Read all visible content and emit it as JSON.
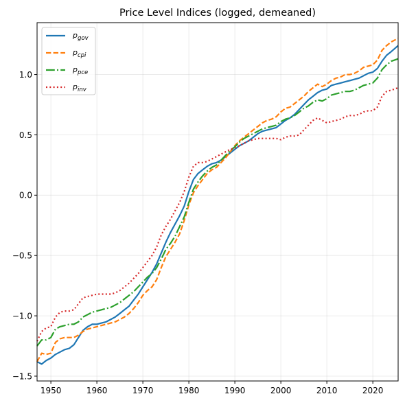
{
  "chart_data": {
    "type": "line",
    "title": "Price Level Indices (logged, demeaned)",
    "xlabel": "",
    "ylabel": "",
    "xlim": [
      1947,
      2025.5
    ],
    "ylim": [
      -1.54,
      1.43
    ],
    "xticks": [
      1950,
      1960,
      1970,
      1980,
      1990,
      2000,
      2010,
      2020
    ],
    "xtick_labels": [
      "1950",
      "1960",
      "1970",
      "1980",
      "1990",
      "2000",
      "2010",
      "2020"
    ],
    "yticks": [
      -1.5,
      -1.0,
      -0.5,
      0.0,
      0.5,
      1.0
    ],
    "ytick_labels": [
      "−1.5",
      "−1.0",
      "−0.5",
      "0.0",
      "0.5",
      "1.0"
    ],
    "grid": true,
    "legend_position": "top-left",
    "series": [
      {
        "key": "gov",
        "name": "p",
        "subscript": "gov",
        "color": "#1f77b4",
        "dash": "solid",
        "x": [
          1947,
          1948,
          1949,
          1950,
          1951,
          1952,
          1953,
          1954,
          1955,
          1956,
          1957,
          1958,
          1959,
          1960,
          1961,
          1962,
          1963,
          1964,
          1965,
          1966,
          1967,
          1968,
          1969,
          1970,
          1971,
          1972,
          1973,
          1974,
          1975,
          1976,
          1977,
          1978,
          1979,
          1980,
          1981,
          1982,
          1983,
          1984,
          1985,
          1986,
          1987,
          1988,
          1989,
          1990,
          1991,
          1992,
          1993,
          1994,
          1995,
          1996,
          1997,
          1998,
          1999,
          2000,
          2001,
          2002,
          2003,
          2004,
          2005,
          2006,
          2007,
          2008,
          2009,
          2010,
          2011,
          2012,
          2013,
          2014,
          2015,
          2016,
          2017,
          2018,
          2019,
          2020,
          2021,
          2022,
          2023,
          2024,
          2025.5
        ],
        "y": [
          -1.38,
          -1.4,
          -1.37,
          -1.35,
          -1.32,
          -1.3,
          -1.28,
          -1.27,
          -1.24,
          -1.18,
          -1.12,
          -1.09,
          -1.07,
          -1.07,
          -1.06,
          -1.05,
          -1.03,
          -1.01,
          -0.98,
          -0.95,
          -0.92,
          -0.87,
          -0.82,
          -0.76,
          -0.7,
          -0.64,
          -0.57,
          -0.48,
          -0.39,
          -0.31,
          -0.24,
          -0.17,
          -0.09,
          0.03,
          0.13,
          0.18,
          0.21,
          0.24,
          0.26,
          0.27,
          0.29,
          0.32,
          0.35,
          0.38,
          0.41,
          0.43,
          0.45,
          0.48,
          0.51,
          0.53,
          0.54,
          0.55,
          0.56,
          0.59,
          0.62,
          0.64,
          0.67,
          0.71,
          0.75,
          0.79,
          0.82,
          0.85,
          0.87,
          0.88,
          0.91,
          0.92,
          0.93,
          0.94,
          0.95,
          0.96,
          0.97,
          0.99,
          1.01,
          1.02,
          1.05,
          1.11,
          1.16,
          1.19,
          1.24
        ]
      },
      {
        "key": "cpi",
        "name": "p",
        "subscript": "cpi",
        "color": "#ff7f0e",
        "dash": "dashed",
        "x": [
          1947,
          1948,
          1949,
          1950,
          1951,
          1952,
          1953,
          1954,
          1955,
          1956,
          1957,
          1958,
          1959,
          1960,
          1961,
          1962,
          1963,
          1964,
          1965,
          1966,
          1967,
          1968,
          1969,
          1970,
          1971,
          1972,
          1973,
          1974,
          1975,
          1976,
          1977,
          1978,
          1979,
          1980,
          1981,
          1982,
          1983,
          1984,
          1985,
          1986,
          1987,
          1988,
          1989,
          1990,
          1991,
          1992,
          1993,
          1994,
          1995,
          1996,
          1997,
          1998,
          1999,
          2000,
          2001,
          2002,
          2003,
          2004,
          2005,
          2006,
          2007,
          2008,
          2009,
          2010,
          2011,
          2012,
          2013,
          2014,
          2015,
          2016,
          2017,
          2018,
          2019,
          2020,
          2021,
          2022,
          2023,
          2024,
          2025.5
        ],
        "y": [
          -1.38,
          -1.31,
          -1.32,
          -1.31,
          -1.22,
          -1.19,
          -1.18,
          -1.18,
          -1.18,
          -1.16,
          -1.13,
          -1.11,
          -1.1,
          -1.09,
          -1.08,
          -1.07,
          -1.06,
          -1.05,
          -1.03,
          -1.01,
          -0.98,
          -0.94,
          -0.89,
          -0.83,
          -0.79,
          -0.76,
          -0.7,
          -0.6,
          -0.51,
          -0.45,
          -0.39,
          -0.32,
          -0.21,
          -0.08,
          0.02,
          0.08,
          0.13,
          0.18,
          0.21,
          0.23,
          0.27,
          0.31,
          0.36,
          0.41,
          0.45,
          0.48,
          0.51,
          0.54,
          0.57,
          0.6,
          0.62,
          0.63,
          0.65,
          0.69,
          0.72,
          0.73,
          0.76,
          0.79,
          0.82,
          0.86,
          0.89,
          0.92,
          0.9,
          0.92,
          0.95,
          0.97,
          0.98,
          1.0,
          1.0,
          1.01,
          1.03,
          1.06,
          1.07,
          1.08,
          1.12,
          1.2,
          1.24,
          1.27,
          1.3
        ]
      },
      {
        "key": "pce",
        "name": "p",
        "subscript": "pce",
        "color": "#2ca02c",
        "dash": "dashdot",
        "x": [
          1947,
          1948,
          1949,
          1950,
          1951,
          1952,
          1953,
          1954,
          1955,
          1956,
          1957,
          1958,
          1959,
          1960,
          1961,
          1962,
          1963,
          1964,
          1965,
          1966,
          1967,
          1968,
          1969,
          1970,
          1971,
          1972,
          1973,
          1974,
          1975,
          1976,
          1977,
          1978,
          1979,
          1980,
          1981,
          1982,
          1983,
          1984,
          1985,
          1986,
          1987,
          1988,
          1989,
          1990,
          1991,
          1992,
          1993,
          1994,
          1995,
          1996,
          1997,
          1998,
          1999,
          2000,
          2001,
          2002,
          2003,
          2004,
          2005,
          2006,
          2007,
          2008,
          2009,
          2010,
          2011,
          2012,
          2013,
          2014,
          2015,
          2016,
          2017,
          2018,
          2019,
          2020,
          2021,
          2022,
          2023,
          2024,
          2025.5
        ],
        "y": [
          -1.25,
          -1.2,
          -1.2,
          -1.18,
          -1.11,
          -1.09,
          -1.08,
          -1.07,
          -1.07,
          -1.05,
          -1.01,
          -0.99,
          -0.97,
          -0.96,
          -0.95,
          -0.94,
          -0.93,
          -0.91,
          -0.89,
          -0.86,
          -0.83,
          -0.8,
          -0.76,
          -0.72,
          -0.68,
          -0.65,
          -0.6,
          -0.53,
          -0.45,
          -0.4,
          -0.34,
          -0.26,
          -0.18,
          -0.06,
          0.05,
          0.11,
          0.16,
          0.2,
          0.23,
          0.25,
          0.29,
          0.33,
          0.37,
          0.4,
          0.44,
          0.47,
          0.49,
          0.51,
          0.53,
          0.55,
          0.56,
          0.57,
          0.58,
          0.61,
          0.63,
          0.64,
          0.66,
          0.69,
          0.72,
          0.74,
          0.77,
          0.79,
          0.78,
          0.8,
          0.83,
          0.84,
          0.85,
          0.86,
          0.86,
          0.87,
          0.89,
          0.91,
          0.92,
          0.93,
          0.97,
          1.04,
          1.08,
          1.11,
          1.13
        ]
      },
      {
        "key": "inv",
        "name": "p",
        "subscript": "inv",
        "color": "#d62728",
        "dash": "dotted",
        "x": [
          1947,
          1948,
          1949,
          1950,
          1951,
          1952,
          1953,
          1954,
          1955,
          1956,
          1957,
          1958,
          1959,
          1960,
          1961,
          1962,
          1963,
          1964,
          1965,
          1966,
          1967,
          1968,
          1969,
          1970,
          1971,
          1972,
          1973,
          1974,
          1975,
          1976,
          1977,
          1978,
          1979,
          1980,
          1981,
          1982,
          1983,
          1984,
          1985,
          1986,
          1987,
          1988,
          1989,
          1990,
          1991,
          1992,
          1993,
          1994,
          1995,
          1996,
          1997,
          1998,
          1999,
          2000,
          2001,
          2002,
          2003,
          2004,
          2005,
          2006,
          2007,
          2008,
          2009,
          2010,
          2011,
          2012,
          2013,
          2014,
          2015,
          2016,
          2017,
          2018,
          2019,
          2020,
          2021,
          2022,
          2023,
          2024,
          2025.5
        ],
        "y": [
          -1.21,
          -1.13,
          -1.1,
          -1.09,
          -1.01,
          -0.97,
          -0.96,
          -0.96,
          -0.95,
          -0.9,
          -0.85,
          -0.84,
          -0.83,
          -0.82,
          -0.82,
          -0.82,
          -0.82,
          -0.81,
          -0.79,
          -0.76,
          -0.73,
          -0.69,
          -0.65,
          -0.6,
          -0.55,
          -0.5,
          -0.43,
          -0.33,
          -0.26,
          -0.2,
          -0.13,
          -0.06,
          0.03,
          0.15,
          0.24,
          0.27,
          0.27,
          0.28,
          0.3,
          0.32,
          0.34,
          0.36,
          0.38,
          0.39,
          0.41,
          0.43,
          0.45,
          0.46,
          0.47,
          0.47,
          0.47,
          0.47,
          0.47,
          0.46,
          0.48,
          0.49,
          0.49,
          0.5,
          0.54,
          0.58,
          0.62,
          0.64,
          0.62,
          0.6,
          0.61,
          0.62,
          0.63,
          0.65,
          0.66,
          0.66,
          0.67,
          0.69,
          0.7,
          0.7,
          0.73,
          0.82,
          0.86,
          0.87,
          0.89
        ]
      }
    ]
  }
}
